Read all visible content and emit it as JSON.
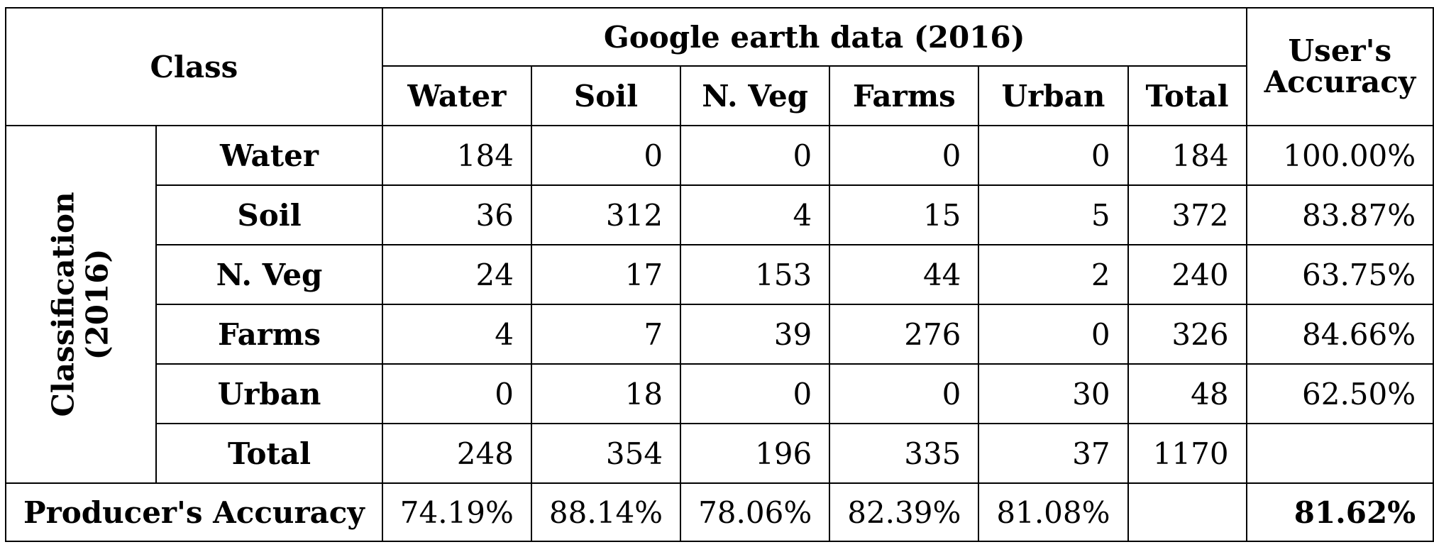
{
  "table": {
    "class_header": "Class",
    "reference_header": "Google earth data (2016)",
    "users_accuracy_header_line1": "User's",
    "users_accuracy_header_line2": "Accuracy",
    "row_group_line1": "Classification",
    "row_group_line2": "(2016)",
    "columns": [
      "Water",
      "Soil",
      "N. Veg",
      "Farms",
      "Urban",
      "Total"
    ],
    "rows": [
      {
        "label": "Water",
        "values": [
          "184",
          "0",
          "0",
          "0",
          "0",
          "184"
        ],
        "users_accuracy": "100.00%"
      },
      {
        "label": "Soil",
        "values": [
          "36",
          "312",
          "4",
          "15",
          "5",
          "372"
        ],
        "users_accuracy": "83.87%"
      },
      {
        "label": "N. Veg",
        "values": [
          "24",
          "17",
          "153",
          "44",
          "2",
          "240"
        ],
        "users_accuracy": "63.75%"
      },
      {
        "label": "Farms",
        "values": [
          "4",
          "7",
          "39",
          "276",
          "0",
          "326"
        ],
        "users_accuracy": "84.66%"
      },
      {
        "label": "Urban",
        "values": [
          "0",
          "18",
          "0",
          "0",
          "30",
          "48"
        ],
        "users_accuracy": "62.50%"
      },
      {
        "label": "Total",
        "values": [
          "248",
          "354",
          "196",
          "335",
          "37",
          "1170"
        ],
        "users_accuracy": ""
      }
    ],
    "producers_accuracy_label": "Producer's Accuracy",
    "producers_accuracy": [
      "74.19%",
      "88.14%",
      "78.06%",
      "82.39%",
      "81.08%",
      ""
    ],
    "overall_accuracy": "81.62%"
  }
}
